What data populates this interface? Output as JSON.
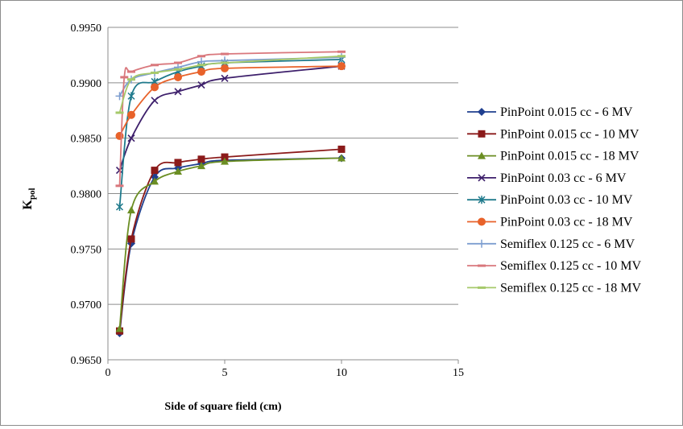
{
  "chart_data": {
    "type": "line",
    "title": "",
    "xlabel": "Side of square field (cm)",
    "ylabel_main": "K",
    "ylabel_sub": "pol",
    "xlim": [
      0,
      15
    ],
    "ylim": [
      0.965,
      0.995
    ],
    "x_ticks": [
      "0",
      "5",
      "10",
      "15"
    ],
    "y_ticks": [
      "0.9650",
      "0.9700",
      "0.9750",
      "0.9800",
      "0.9850",
      "0.9900",
      "0.9950"
    ],
    "grid": "horizontal",
    "legend_position": "right",
    "series": [
      {
        "name": "PinPoint 0.015 cc - 6 MV",
        "color": "#1f3f8f",
        "marker": "diamond",
        "x": [
          0.5,
          1,
          2,
          3,
          4,
          5,
          10
        ],
        "y": [
          0.9674,
          0.9755,
          0.9815,
          0.9823,
          0.9827,
          0.983,
          0.9832
        ]
      },
      {
        "name": "PinPoint 0.015 cc - 10 MV",
        "color": "#8b1a1a",
        "marker": "square",
        "x": [
          0.5,
          1,
          2,
          3,
          4,
          5,
          10
        ],
        "y": [
          0.9676,
          0.9759,
          0.9821,
          0.9828,
          0.9831,
          0.9833,
          0.984
        ]
      },
      {
        "name": "PinPoint 0.015 cc - 18 MV",
        "color": "#6b8e23",
        "marker": "triangle",
        "x": [
          0.5,
          1,
          2,
          3,
          4,
          5,
          10
        ],
        "y": [
          0.9678,
          0.9785,
          0.9811,
          0.982,
          0.9825,
          0.9829,
          0.9832
        ]
      },
      {
        "name": "PinPoint 0.03 cc - 6 MV",
        "color": "#3d1f6b",
        "marker": "x",
        "x": [
          0.5,
          1,
          2,
          3,
          4,
          5,
          10
        ],
        "y": [
          0.9821,
          0.985,
          0.9884,
          0.9892,
          0.9898,
          0.9904,
          0.9915
        ]
      },
      {
        "name": "PinPoint 0.03 cc - 10 MV",
        "color": "#1f7a8c",
        "marker": "asterisk",
        "x": [
          0.5,
          1,
          2,
          3,
          4,
          5,
          10
        ],
        "y": [
          0.9788,
          0.9888,
          0.9901,
          0.991,
          0.9915,
          0.9918,
          0.9921
        ]
      },
      {
        "name": "PinPoint 0.03 cc - 18 MV",
        "color": "#e8622a",
        "marker": "circle",
        "x": [
          0.5,
          1,
          2,
          3,
          4,
          5,
          10
        ],
        "y": [
          0.9852,
          0.9871,
          0.9896,
          0.9905,
          0.991,
          0.9913,
          0.9915
        ]
      },
      {
        "name": "Semiflex 0.125 cc - 6 MV",
        "color": "#7d9ed0",
        "marker": "plus",
        "x": [
          0.5,
          1,
          2,
          3,
          4,
          5,
          10
        ],
        "y": [
          0.9888,
          0.9903,
          0.9909,
          0.9914,
          0.9919,
          0.992,
          0.9923
        ]
      },
      {
        "name": "Semiflex 0.125 cc - 10 MV",
        "color": "#d9777c",
        "marker": "dash",
        "x": [
          0.5,
          0.7,
          1,
          2,
          3,
          4,
          5,
          10
        ],
        "y": [
          0.9807,
          0.9905,
          0.991,
          0.9916,
          0.9918,
          0.9924,
          0.9926,
          0.9928
        ]
      },
      {
        "name": "Semiflex 0.125 cc - 18 MV",
        "color": "#a6c96a",
        "marker": "dash",
        "x": [
          0.5,
          1,
          2,
          3,
          4,
          5,
          10
        ],
        "y": [
          0.9873,
          0.9903,
          0.9909,
          0.9912,
          0.9916,
          0.9918,
          0.9924
        ]
      }
    ]
  }
}
